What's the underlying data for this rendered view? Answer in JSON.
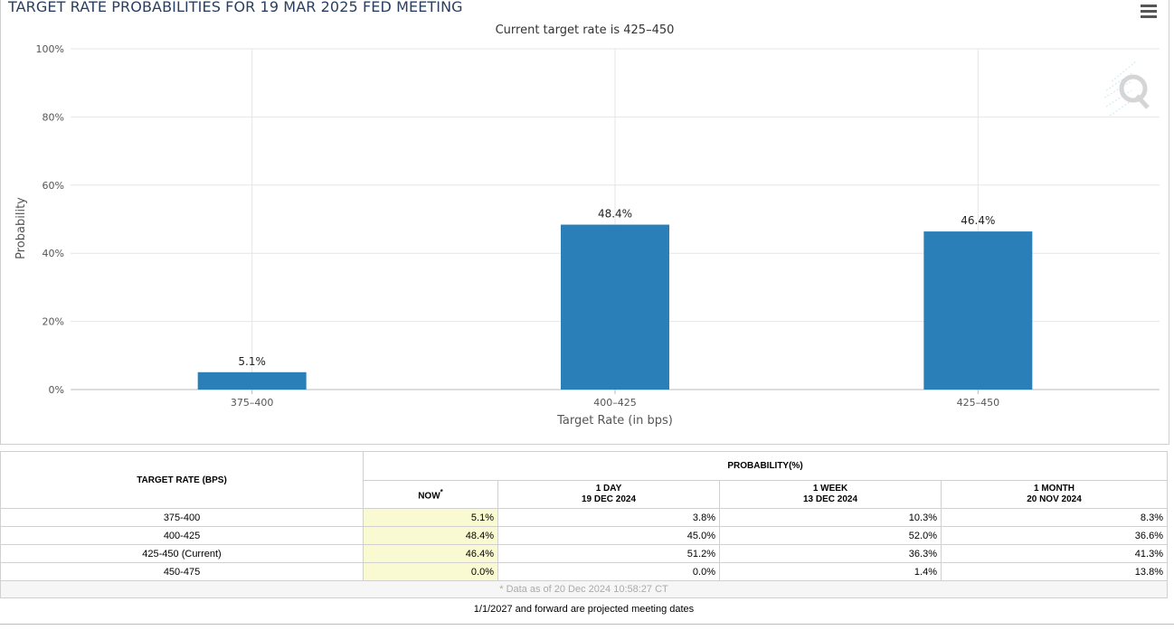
{
  "chart": {
    "title": "TARGET RATE PROBABILITIES FOR 19 MAR 2025 FED MEETING",
    "subtitle": "Current target rate is 425–450"
  },
  "chart_data": {
    "type": "bar",
    "title": "TARGET RATE PROBABILITIES FOR 19 MAR 2025 FED MEETING",
    "subtitle": "Current target rate is 425–450",
    "categories": [
      "375–400",
      "400–425",
      "425–450"
    ],
    "values": [
      5.1,
      48.4,
      46.4
    ],
    "data_labels": [
      "5.1%",
      "48.4%",
      "46.4%"
    ],
    "xlabel": "Target Rate (in bps)",
    "ylabel": "Probability",
    "ylim": [
      0,
      100
    ],
    "yticks": [
      0,
      20,
      40,
      60,
      80,
      100
    ],
    "ytick_labels": [
      "0%",
      "20%",
      "40%",
      "60%",
      "80%",
      "100%"
    ],
    "grid": true,
    "bar_color": "#2b7fb8"
  },
  "table": {
    "target_header": "TARGET RATE (BPS)",
    "prob_header": "PROBABILITY(%)",
    "columns": [
      {
        "line1": "NOW",
        "line2": "",
        "marker": "*"
      },
      {
        "line1": "1 DAY",
        "line2": "19 DEC 2024",
        "marker": ""
      },
      {
        "line1": "1 WEEK",
        "line2": "13 DEC 2024",
        "marker": ""
      },
      {
        "line1": "1 MONTH",
        "line2": "20 NOV 2024",
        "marker": ""
      }
    ],
    "rows": [
      {
        "rate": "375-400",
        "values": [
          "5.1%",
          "3.8%",
          "10.3%",
          "8.3%"
        ]
      },
      {
        "rate": "400-425",
        "values": [
          "48.4%",
          "45.0%",
          "52.0%",
          "36.6%"
        ]
      },
      {
        "rate": "425-450 (Current)",
        "values": [
          "46.4%",
          "51.2%",
          "36.3%",
          "41.3%"
        ]
      },
      {
        "rate": "450-475",
        "values": [
          "0.0%",
          "0.0%",
          "1.4%",
          "13.8%"
        ]
      }
    ],
    "note": "* Data as of 20 Dec 2024 10:58:27 CT"
  },
  "footer": "1/1/2027 and forward are projected meeting dates",
  "icons": {
    "menu": "hamburger-menu-icon",
    "watermark": "q-logo-watermark"
  }
}
